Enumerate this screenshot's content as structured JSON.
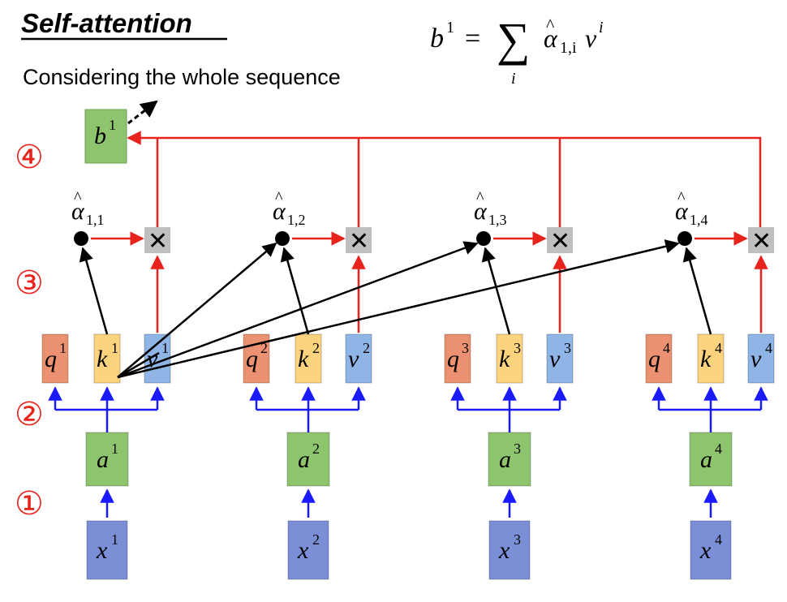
{
  "title": "Self-attention",
  "subtitle": "Considering the whole sequence",
  "formula": {
    "lhs": "b",
    "lhs_sup": "1",
    "equals": "=",
    "sum_symbol": "∑",
    "sum_index": "i",
    "alpha": "α",
    "alpha_sub": "1,i",
    "v": "v",
    "v_sup": "i"
  },
  "step_markers": [
    "①",
    "②",
    "③",
    "④"
  ],
  "output": {
    "base": "b",
    "sup": "1"
  },
  "groups": [
    {
      "x_sup": "1",
      "a_sup": "1",
      "q_sup": "1",
      "k_sup": "1",
      "v_sup": "1",
      "alpha_sub": "1,1"
    },
    {
      "x_sup": "2",
      "a_sup": "2",
      "q_sup": "2",
      "k_sup": "2",
      "v_sup": "2",
      "alpha_sub": "1,2"
    },
    {
      "x_sup": "3",
      "a_sup": "3",
      "q_sup": "3",
      "k_sup": "3",
      "v_sup": "3",
      "alpha_sub": "1,3"
    },
    {
      "x_sup": "4",
      "a_sup": "4",
      "q_sup": "4",
      "k_sup": "4",
      "v_sup": "4",
      "alpha_sub": "1,4"
    }
  ],
  "symbols": {
    "x": "x",
    "a": "a",
    "q": "q",
    "k": "k",
    "v": "v",
    "alpha": "α",
    "multiply": "✕"
  },
  "colors": {
    "x_box": "#7b8fd6",
    "a_box": "#8fc46f",
    "q_box": "#ec9272",
    "k_box": "#fdd37d",
    "v_box": "#8fb4e6",
    "mult_box": "#bfbfbf",
    "red_arrow": "#e8231c",
    "blue_arrow": "#1a1aff",
    "black": "#000000"
  }
}
